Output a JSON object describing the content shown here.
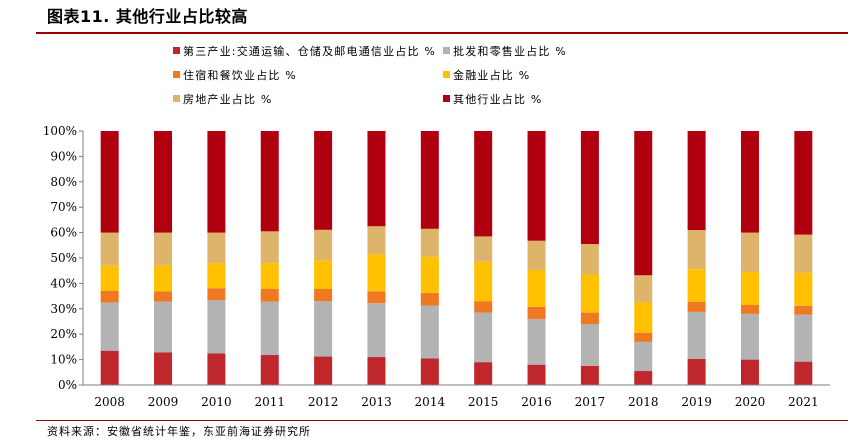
{
  "figure": {
    "title": "图表11. 其他行业占比较高",
    "source": "资料来源：安徽省统计年鉴，东亚前海证券研究所"
  },
  "colors": {
    "rule": "#9b0000"
  },
  "chart_data": {
    "type": "bar",
    "stacked": true,
    "categories": [
      "2008",
      "2009",
      "2010",
      "2011",
      "2012",
      "2013",
      "2014",
      "2015",
      "2016",
      "2017",
      "2018",
      "2019",
      "2020",
      "2021"
    ],
    "ylim": [
      0,
      100
    ],
    "yticks": [
      "0%",
      "10%",
      "20%",
      "30%",
      "40%",
      "50%",
      "60%",
      "70%",
      "80%",
      "90%",
      "100%"
    ],
    "grid": false,
    "legend_position": "top",
    "series": [
      {
        "name": "第三产业:交通运输、仓储及邮电通信业占比 %",
        "color": "#c0272d",
        "values": [
          13.5,
          12.8,
          12.4,
          11.8,
          11.2,
          11.0,
          10.5,
          9.0,
          8.0,
          7.5,
          5.5,
          10.3,
          10.0,
          9.2
        ]
      },
      {
        "name": "批发和零售业占比 %",
        "color": "#b3b3b3",
        "values": [
          19.0,
          20.0,
          21.0,
          21.0,
          21.8,
          21.2,
          20.8,
          19.5,
          18.0,
          16.5,
          11.5,
          18.5,
          18.0,
          18.5
        ]
      },
      {
        "name": "住宿和餐饮业占比 %",
        "color": "#f07820",
        "values": [
          4.5,
          4.0,
          4.7,
          5.0,
          4.8,
          4.7,
          5.0,
          4.5,
          4.8,
          4.5,
          3.5,
          4.0,
          3.5,
          3.5
        ]
      },
      {
        "name": "金融业占比 %",
        "color": "#ffc000",
        "values": [
          10.0,
          10.2,
          9.9,
          10.2,
          11.3,
          14.6,
          14.2,
          15.5,
          14.5,
          15.0,
          12.0,
          12.8,
          13.0,
          13.0
        ]
      },
      {
        "name": "房地产业占比 %",
        "color": "#deb46a",
        "values": [
          13.0,
          13.0,
          12.0,
          12.5,
          12.0,
          11.0,
          11.0,
          10.0,
          11.5,
          12.0,
          10.7,
          15.4,
          15.5,
          15.0
        ]
      },
      {
        "name": "其他行业占比 %",
        "color": "#b0000f",
        "values": [
          40.0,
          40.0,
          40.0,
          39.5,
          38.9,
          37.5,
          38.5,
          41.5,
          43.2,
          44.5,
          56.8,
          39.0,
          40.0,
          40.8
        ]
      }
    ]
  }
}
